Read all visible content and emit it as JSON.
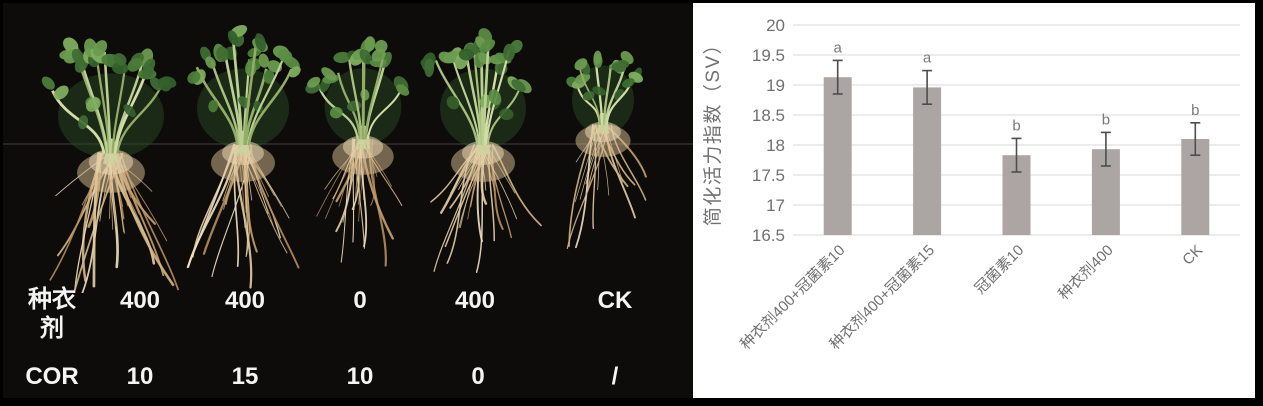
{
  "photo": {
    "background_color": "#0d0c0a",
    "description_rows": [
      {
        "label": "种衣剂",
        "values": [
          "400",
          "400",
          "0",
          "400",
          "CK"
        ]
      },
      {
        "label": "COR",
        "values": [
          "10",
          "15",
          "10",
          "0",
          "/"
        ]
      }
    ]
  },
  "chart_data": {
    "type": "bar",
    "title": "",
    "ylabel": "简化活力指数（SV）",
    "xlabel": "",
    "categories": [
      "种衣剂400+冠菌素10",
      "种衣剂400+冠菌素15",
      "冠菌素10",
      "种衣剂400",
      "CK"
    ],
    "values": [
      19.13,
      18.96,
      17.83,
      17.93,
      18.1
    ],
    "errors": [
      0.28,
      0.28,
      0.28,
      0.28,
      0.27
    ],
    "sig_letters": [
      "a",
      "a",
      "b",
      "b",
      "b"
    ],
    "ylim": [
      16.5,
      20
    ],
    "ytick_step": 0.5,
    "yticks": [
      "16.5",
      "17",
      "17.5",
      "18",
      "18.5",
      "19",
      "19.5",
      "20"
    ],
    "grid": true,
    "legend": "none",
    "colors": {
      "bar": "#aba6a3",
      "error_bar": "#4d4d4d",
      "gridline": "#d9d9d9",
      "axis_text": "#707070",
      "sig_letter": "#7a7a7a"
    }
  }
}
